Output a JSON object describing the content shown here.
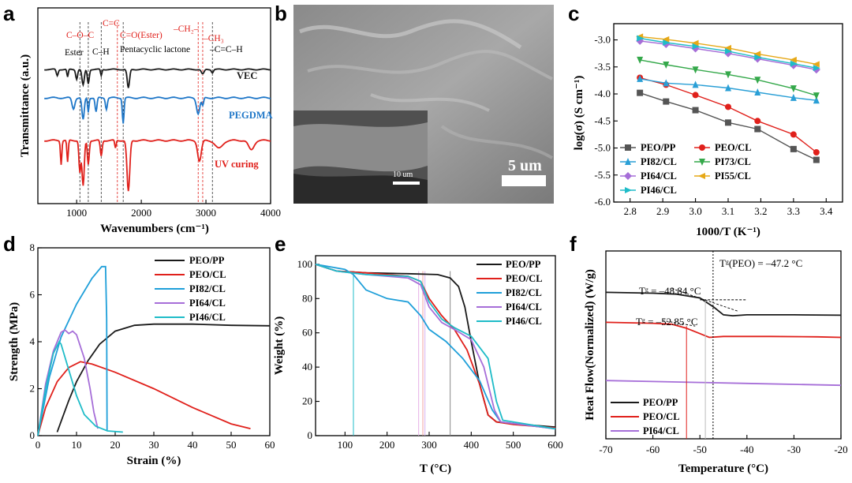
{
  "panel_labels": {
    "a": "a",
    "b": "b",
    "c": "c",
    "d": "d",
    "e": "e",
    "f": "f"
  },
  "colors": {
    "black": "#1a1a1a",
    "red": "#e0201b",
    "blue": "#1f77c8",
    "green": "#34a84a",
    "purple": "#a66ed8",
    "cyan": "#1fbcc8",
    "orange": "#e6a817",
    "sky": "#2a9fd6",
    "grey": "#555555"
  },
  "chart_data": [
    {
      "id": "a",
      "type": "line",
      "title": "",
      "xlabel": "Wavenumbers (cm⁻¹)",
      "ylabel": "Transmittance (a.u.)",
      "xlim": [
        400,
        4000
      ],
      "xticks": [
        1000,
        2000,
        3000,
        4000
      ],
      "series": [
        {
          "name": "VEC",
          "color": "#1a1a1a"
        },
        {
          "name": "PEGDMA",
          "color": "#1f77c8"
        },
        {
          "name": "UV curing",
          "color": "#e0201b"
        }
      ],
      "guides": [
        1050,
        1180,
        1380,
        1630,
        1720,
        2880,
        2950,
        3100
      ],
      "annotations_red": [
        "C–O–C",
        "C=C",
        "C=O(Ester)",
        "–CH₂–",
        "–CH₃"
      ],
      "annotations_black": [
        "Ester",
        "C–H",
        "Pentacyclic lactone",
        "–C=C–H"
      ]
    },
    {
      "id": "b",
      "type": "image",
      "scale_bar": "5 um",
      "inset_scale_bar": "10 um"
    },
    {
      "id": "c",
      "type": "line",
      "xlabel": "1000/T (K⁻¹)",
      "ylabel": "log(σ) (S cm⁻¹)",
      "xlim": [
        2.75,
        3.45
      ],
      "ylim": [
        -6.0,
        -2.7
      ],
      "xticks": [
        2.8,
        2.9,
        3.0,
        3.1,
        3.2,
        3.3,
        3.4
      ],
      "yticks": [
        -3.0,
        -3.5,
        -4.0,
        -4.5,
        -5.0,
        -5.5,
        -6.0
      ],
      "x": [
        2.83,
        2.91,
        3.0,
        3.1,
        3.19,
        3.3,
        3.37
      ],
      "series": [
        {
          "name": "PEO/PP",
          "color": "#555555",
          "marker": "square",
          "values": [
            -3.98,
            -4.14,
            -4.3,
            -4.53,
            -4.65,
            -5.02,
            -5.22
          ]
        },
        {
          "name": "PEO/CL",
          "color": "#e0201b",
          "marker": "circle",
          "values": [
            -3.7,
            -3.83,
            -4.02,
            -4.24,
            -4.5,
            -4.75,
            -5.08
          ]
        },
        {
          "name": "PI82/CL",
          "color": "#2a9fd6",
          "marker": "triangle",
          "values": [
            -3.72,
            -3.8,
            -3.83,
            -3.89,
            -3.97,
            -4.07,
            -4.12
          ]
        },
        {
          "name": "PI73/CL",
          "color": "#34a84a",
          "marker": "tri-down",
          "values": [
            -3.37,
            -3.46,
            -3.55,
            -3.64,
            -3.74,
            -3.9,
            -4.03
          ]
        },
        {
          "name": "PI64/CL",
          "color": "#a66ed8",
          "marker": "diamond",
          "values": [
            -3.02,
            -3.08,
            -3.16,
            -3.25,
            -3.35,
            -3.47,
            -3.55
          ]
        },
        {
          "name": "PI55/CL",
          "color": "#e6a817",
          "marker": "tri-left",
          "values": [
            -2.94,
            -2.99,
            -3.06,
            -3.15,
            -3.26,
            -3.37,
            -3.45
          ]
        },
        {
          "name": "PI46/CL",
          "color": "#1fbcc8",
          "marker": "tri-right",
          "values": [
            -2.97,
            -3.05,
            -3.12,
            -3.21,
            -3.32,
            -3.44,
            -3.52
          ]
        }
      ]
    },
    {
      "id": "d",
      "type": "line",
      "xlabel": "Strain (%)",
      "ylabel": "Strength (MPa)",
      "xlim": [
        0,
        60
      ],
      "ylim": [
        0,
        8
      ],
      "xticks": [
        0,
        10,
        20,
        30,
        40,
        50,
        60
      ],
      "yticks": [
        0,
        2,
        4,
        6,
        8
      ],
      "series": [
        {
          "name": "PEO/PP",
          "color": "#1a1a1a",
          "points": [
            [
              5,
              0.15
            ],
            [
              6,
              0.6
            ],
            [
              8,
              1.5
            ],
            [
              10,
              2.3
            ],
            [
              13,
              3.2
            ],
            [
              16,
              3.9
            ],
            [
              20,
              4.45
            ],
            [
              25,
              4.7
            ],
            [
              30,
              4.75
            ],
            [
              40,
              4.75
            ],
            [
              50,
              4.7
            ],
            [
              60,
              4.68
            ]
          ]
        },
        {
          "name": "PEO/CL",
          "color": "#e0201b",
          "points": [
            [
              0,
              0
            ],
            [
              2,
              1.2
            ],
            [
              5,
              2.3
            ],
            [
              8,
              2.9
            ],
            [
              11,
              3.15
            ],
            [
              14,
              3.05
            ],
            [
              20,
              2.7
            ],
            [
              30,
              2.0
            ],
            [
              40,
              1.2
            ],
            [
              50,
              0.5
            ],
            [
              55,
              0.3
            ]
          ]
        },
        {
          "name": "PI82/CL",
          "color": "#1f9fd9",
          "points": [
            [
              0,
              0
            ],
            [
              3,
              2.5
            ],
            [
              6,
              4.2
            ],
            [
              10,
              5.6
            ],
            [
              14,
              6.7
            ],
            [
              16.5,
              7.2
            ],
            [
              17.5,
              7.2
            ],
            [
              17.8,
              5
            ],
            [
              17.9,
              0.2
            ]
          ]
        },
        {
          "name": "PI64/CL",
          "color": "#a66ed8",
          "points": [
            [
              0,
              0
            ],
            [
              2,
              2.2
            ],
            [
              4,
              3.6
            ],
            [
              6,
              4.4
            ],
            [
              7,
              4.5
            ],
            [
              8,
              4.35
            ],
            [
              9,
              4.45
            ],
            [
              10,
              4.3
            ],
            [
              12,
              3.3
            ],
            [
              13.5,
              2.0
            ],
            [
              14.5,
              1.0
            ],
            [
              15.5,
              0.3
            ]
          ]
        },
        {
          "name": "PI46/CL",
          "color": "#1fbcc8",
          "points": [
            [
              0,
              0
            ],
            [
              2,
              2.0
            ],
            [
              4,
              3.5
            ],
            [
              5.5,
              4.0
            ],
            [
              6,
              3.9
            ],
            [
              8,
              2.8
            ],
            [
              10,
              1.7
            ],
            [
              12,
              0.9
            ],
            [
              15,
              0.4
            ],
            [
              18,
              0.2
            ],
            [
              22,
              0.15
            ]
          ]
        }
      ]
    },
    {
      "id": "e",
      "type": "line",
      "xlabel": "T (°C)",
      "ylabel": "Weight (%)",
      "xlim": [
        30,
        600
      ],
      "ylim": [
        0,
        105
      ],
      "xticks": [
        100,
        200,
        300,
        400,
        500,
        600
      ],
      "yticks": [
        0,
        20,
        40,
        60,
        80,
        100
      ],
      "series": [
        {
          "name": "PEO/PP",
          "color": "#1a1a1a",
          "points": [
            [
              30,
              100
            ],
            [
              80,
              96
            ],
            [
              150,
              95
            ],
            [
              250,
              94.5
            ],
            [
              320,
              94
            ],
            [
              350,
              92
            ],
            [
              370,
              87
            ],
            [
              385,
              75
            ],
            [
              400,
              55
            ],
            [
              420,
              30
            ],
            [
              440,
              12
            ],
            [
              460,
              8
            ],
            [
              500,
              7
            ],
            [
              600,
              5
            ]
          ]
        },
        {
          "name": "PEO/CL",
          "color": "#e0201b",
          "points": [
            [
              30,
              100
            ],
            [
              80,
              96
            ],
            [
              150,
              95
            ],
            [
              250,
              93
            ],
            [
              280,
              90
            ],
            [
              300,
              80
            ],
            [
              330,
              70
            ],
            [
              360,
              62
            ],
            [
              390,
              50
            ],
            [
              420,
              30
            ],
            [
              440,
              12
            ],
            [
              460,
              8
            ],
            [
              500,
              6.5
            ],
            [
              600,
              4.5
            ]
          ]
        },
        {
          "name": "PI82/CL",
          "color": "#1f9fd9",
          "points": [
            [
              30,
              100
            ],
            [
              100,
              97
            ],
            [
              120,
              94
            ],
            [
              150,
              85
            ],
            [
              200,
              80
            ],
            [
              250,
              78
            ],
            [
              280,
              70
            ],
            [
              300,
              62
            ],
            [
              340,
              55
            ],
            [
              380,
              45
            ],
            [
              420,
              32
            ],
            [
              450,
              15
            ],
            [
              470,
              8
            ],
            [
              600,
              4
            ]
          ]
        },
        {
          "name": "PI64/CL",
          "color": "#a66ed8",
          "points": [
            [
              30,
              100
            ],
            [
              80,
              96
            ],
            [
              150,
              94
            ],
            [
              250,
              92
            ],
            [
              280,
              88
            ],
            [
              300,
              75
            ],
            [
              330,
              66
            ],
            [
              360,
              62
            ],
            [
              400,
              56
            ],
            [
              430,
              40
            ],
            [
              455,
              15
            ],
            [
              470,
              8
            ],
            [
              600,
              4
            ]
          ]
        },
        {
          "name": "PI46/CL",
          "color": "#1fbcc8",
          "points": [
            [
              30,
              100
            ],
            [
              80,
              96
            ],
            [
              150,
              94
            ],
            [
              250,
              93
            ],
            [
              280,
              90
            ],
            [
              300,
              78
            ],
            [
              330,
              68
            ],
            [
              360,
              63
            ],
            [
              400,
              58
            ],
            [
              440,
              45
            ],
            [
              460,
              20
            ],
            [
              475,
              9
            ],
            [
              600,
              4
            ]
          ]
        }
      ],
      "vlines": [
        120,
        275,
        285,
        290,
        350
      ]
    },
    {
      "id": "f",
      "type": "line",
      "xlabel": "Temperature (°C)",
      "ylabel": "Heat Flow(Normalized) (W/g)",
      "xlim": [
        -70,
        -20
      ],
      "xticks": [
        -70,
        -60,
        -50,
        -40,
        -30,
        -20
      ],
      "annotations": {
        "tg_peo": "Tᵍ(PEO) = –47.2 °C",
        "tg_1": "Tᵍ = –48.84 °C",
        "tg_2": "Tᵍ = –52.85 °C"
      },
      "tg_values": [
        -47.2,
        -48.84,
        -52.85
      ],
      "series": [
        {
          "name": "PEO/PP",
          "color": "#1a1a1a",
          "points": [
            [
              -70,
              0.78
            ],
            [
              -60,
              0.775
            ],
            [
              -55,
              0.77
            ],
            [
              -50,
              0.75
            ],
            [
              -47,
              0.7
            ],
            [
              -45,
              0.66
            ],
            [
              -43,
              0.655
            ],
            [
              -40,
              0.66
            ],
            [
              -30,
              0.66
            ],
            [
              -20,
              0.658
            ]
          ]
        },
        {
          "name": "PEO/CL",
          "color": "#e0201b",
          "points": [
            [
              -70,
              0.62
            ],
            [
              -60,
              0.615
            ],
            [
              -56,
              0.61
            ],
            [
              -53,
              0.59
            ],
            [
              -50,
              0.56
            ],
            [
              -48,
              0.54
            ],
            [
              -45,
              0.545
            ],
            [
              -35,
              0.545
            ],
            [
              -25,
              0.543
            ],
            [
              -20,
              0.54
            ]
          ]
        },
        {
          "name": "PI64/CL",
          "color": "#a66ed8",
          "points": [
            [
              -70,
              0.31
            ],
            [
              -60,
              0.305
            ],
            [
              -50,
              0.3
            ],
            [
              -40,
              0.295
            ],
            [
              -30,
              0.29
            ],
            [
              -20,
              0.285
            ]
          ]
        }
      ]
    }
  ],
  "legend_d": [
    "PEO/PP",
    "PEO/CL",
    "PI82/CL",
    "PI64/CL",
    "PI46/CL"
  ],
  "legend_e": [
    "PEO/PP",
    "PEO/CL",
    "PI82/CL",
    "PI64/CL",
    "PI46/CL"
  ],
  "legend_f": [
    "PEO/PP",
    "PEO/CL",
    "PI64/CL"
  ]
}
